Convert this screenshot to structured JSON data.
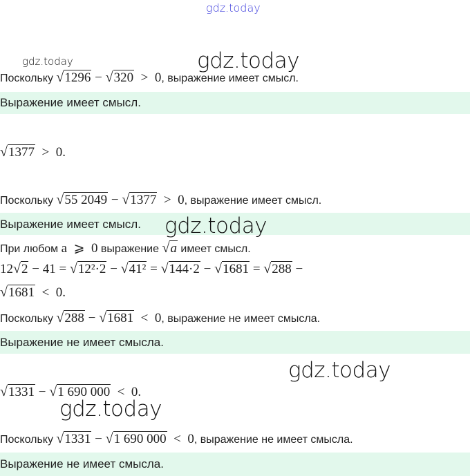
{
  "watermark": "gdz.today",
  "colors": {
    "answer_band": "#e2f8ec",
    "top_watermark": "#3b3bdc"
  },
  "lines": [
    [
      {
        "t": "Поскольку "
      },
      {
        "r": "1296"
      },
      {
        "m": " − "
      },
      {
        "r": "320"
      },
      {
        "m": "  >  0"
      },
      {
        "t": ", выражение имеет смысл."
      }
    ],
    [
      {
        "r": "1377"
      },
      {
        "m": "  >  0."
      }
    ],
    [
      {
        "t": "Поскольку "
      },
      {
        "r": "55 2049"
      },
      {
        "m": " − "
      },
      {
        "r": "1377"
      },
      {
        "m": "  >  0"
      },
      {
        "t": ", выражение имеет смысл."
      }
    ],
    [
      {
        "t": "При любом "
      },
      {
        "m": "a  ⩾  0"
      },
      {
        "t": " выражение "
      },
      {
        "r": "a"
      },
      {
        "t": " имеет смысл."
      }
    ],
    [
      {
        "m": "12"
      },
      {
        "r": "2"
      },
      {
        "m": " − 41 = "
      },
      {
        "r": "12²·2"
      },
      {
        "m": " − "
      },
      {
        "r": "41²"
      },
      {
        "m": " = "
      },
      {
        "r": "144·2"
      },
      {
        "m": " − "
      },
      {
        "r": "1681"
      },
      {
        "m": " = "
      },
      {
        "r": "288"
      },
      {
        "m": " −"
      }
    ],
    [
      {
        "r": "1681"
      },
      {
        "m": "  <  0."
      }
    ],
    [
      {
        "t": "Поскольку "
      },
      {
        "r": "288"
      },
      {
        "m": " − "
      },
      {
        "r": "1681"
      },
      {
        "m": "  <  0"
      },
      {
        "t": ", выражение не имеет смысла."
      }
    ],
    [
      {
        "r": "1331"
      },
      {
        "m": " − "
      },
      {
        "r": "1 690 000"
      },
      {
        "m": "  <  0."
      }
    ],
    [
      {
        "t": "Поскольку "
      },
      {
        "r": "1331"
      },
      {
        "m": " − "
      },
      {
        "r": "1 690 000"
      },
      {
        "m": "  <  0"
      },
      {
        "t": ", выражение не имеет смысла."
      }
    ]
  ],
  "answers": [
    "Выражение имеет смысл.",
    "Выражение имеет смысл.",
    "Выражение не имеет смысла.",
    "Выражение не имеет смысла."
  ]
}
